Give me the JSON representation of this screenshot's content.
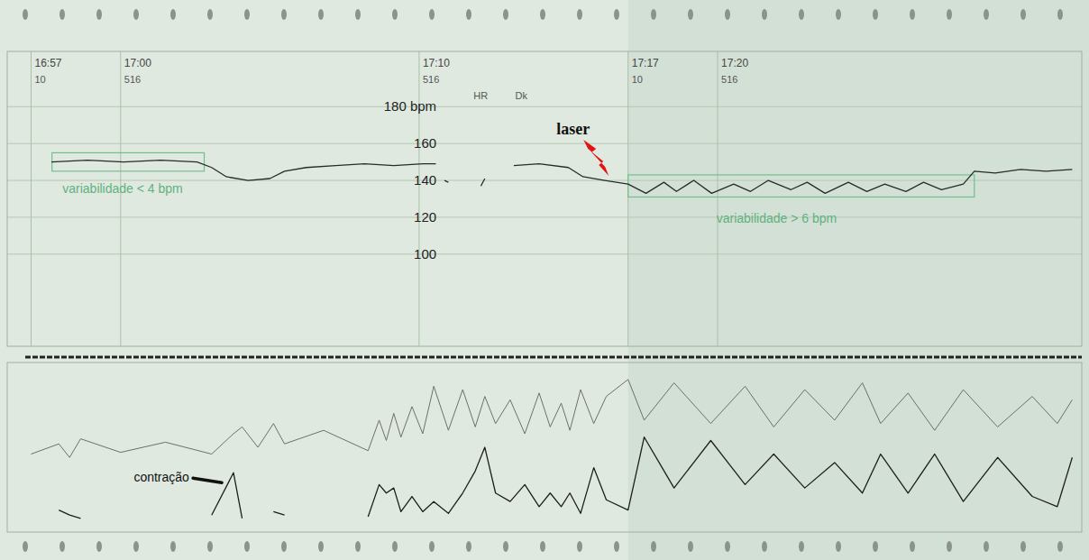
{
  "chart_data": [
    {
      "type": "line",
      "x": [
        57.68,
        58.9,
        60.1,
        61.34,
        62.56,
        63.05,
        63.54,
        64.27,
        65.0,
        65.49,
        66.22,
        67.2,
        68.17,
        69.15,
        70.12,
        70.56,
        70.7,
        70.85,
        70.98,
        71.5,
        72.07,
        72.2,
        72.6,
        73.17,
        74.02,
        75.0,
        75.49,
        76.22,
        77.0,
        77.6,
        78.2,
        78.62,
        79.2,
        79.8,
        80.54,
        81.1,
        81.7,
        82.46,
        83.0,
        83.6,
        84.38,
        85.0,
        85.6,
        86.31,
        86.9,
        87.5,
        88.23,
        88.6,
        89.3,
        90.15,
        91.0,
        91.88
      ],
      "series": [
        {
          "color": "#2a2a2a",
          "values": [
            150,
            151,
            150,
            151,
            150,
            147,
            142,
            140,
            141,
            145,
            147,
            148,
            149,
            148,
            149,
            149,
            null,
            140,
            139,
            null,
            137,
            141,
            null,
            148,
            149,
            147,
            142,
            140,
            138,
            133,
            139,
            134,
            140,
            133,
            138,
            134,
            140,
            135,
            139,
            133,
            139,
            134,
            138,
            134,
            139,
            135,
            138,
            145,
            144,
            146,
            145,
            146
          ]
        }
      ],
      "xlim": [
        56.2,
        92.2
      ],
      "xticks": [
        {
          "value": 57,
          "label": "16:57"
        },
        {
          "value": 60,
          "label": "17:00"
        },
        {
          "value": 70,
          "label": "17:10"
        },
        {
          "value": 77,
          "label": "17:17"
        },
        {
          "value": 80,
          "label": "17:20"
        }
      ],
      "ylim": [
        50,
        210
      ],
      "yticks": [
        100,
        120,
        140,
        160,
        {
          "value": 180,
          "label": "180 bpm"
        }
      ],
      "grid": true,
      "annotations": [
        {
          "text": "variabilidade < 4 bpm",
          "x": 58.05,
          "y": 133,
          "box_x": [
            57.7,
            62.8
          ],
          "box_y": [
            145,
            155
          ]
        },
        {
          "text": "variabilidade > 6 bpm",
          "x": 79.96,
          "y": 117,
          "box_x": [
            77,
            88.6
          ],
          "box_y": [
            131,
            143
          ]
        }
      ],
      "event": {
        "text": "laser",
        "x": 74.6,
        "y": 165
      },
      "markers": [
        {
          "text": "10",
          "x": 57,
          "y": 193
        },
        {
          "text": "516",
          "x": 60,
          "y": 193
        },
        {
          "text": "516",
          "x": 70,
          "y": 193
        },
        {
          "text": "10",
          "x": 77,
          "y": 193
        },
        {
          "text": "516",
          "x": 80,
          "y": 193
        },
        {
          "text": "HR",
          "x": 71.7,
          "y": 184
        },
        {
          "text": "Dk",
          "x": 73.1,
          "y": 184
        }
      ]
    },
    {
      "type": "line",
      "x": [
        57.0,
        57.93,
        58.29,
        58.66,
        60.0,
        61.5,
        63.05,
        63.78,
        64.07,
        64.6,
        65.12,
        65.49,
        66.8,
        68.29,
        68.66,
        68.9,
        69.15,
        69.39,
        69.76,
        70.12,
        70.49,
        70.98,
        71.46,
        71.88,
        72.2,
        72.56,
        73.05,
        73.54,
        74.02,
        74.39,
        74.76,
        75.05,
        75.41,
        75.85,
        76.27,
        77.0,
        77.54,
        78.54,
        79.77,
        80.92,
        81.88,
        82.92,
        83.92,
        84.85,
        85.46,
        86.38,
        87.27,
        88.23,
        89.38,
        90.54,
        91.38,
        91.88
      ],
      "series": [
        {
          "color": "#6e6e6e",
          "values": [
            46,
            52,
            44,
            55,
            47,
            53,
            46,
            58,
            62,
            50,
            64,
            52,
            60,
            48,
            66,
            54,
            70,
            56,
            74,
            58,
            86,
            60,
            84,
            62,
            80,
            64,
            78,
            58,
            82,
            62,
            76,
            60,
            84,
            64,
            80,
            90,
            66,
            88,
            64,
            86,
            62,
            84,
            66,
            88,
            64,
            82,
            60,
            84,
            62,
            80,
            64,
            78
          ]
        },
        {
          "color": "#1e1e1e",
          "values": [
            null,
            13,
            10,
            8,
            null,
            null,
            10,
            35,
            8,
            null,
            12,
            10,
            null,
            9,
            28,
            23,
            26,
            12,
            21,
            12,
            18,
            11,
            23,
            36,
            50,
            23,
            18,
            28,
            15,
            23,
            15,
            23,
            11,
            38,
            19,
            13,
            56,
            26,
            54,
            28,
            46,
            26,
            41,
            23,
            46,
            23,
            46,
            18,
            44,
            21,
            15,
            44
          ]
        }
      ],
      "xlim": [
        56.2,
        92.2
      ],
      "ylim": [
        0,
        100
      ],
      "grid": false,
      "tick_labels": false,
      "annotations": [
        {
          "text": "contração",
          "x": 60.44,
          "y": 30
        }
      ]
    }
  ]
}
